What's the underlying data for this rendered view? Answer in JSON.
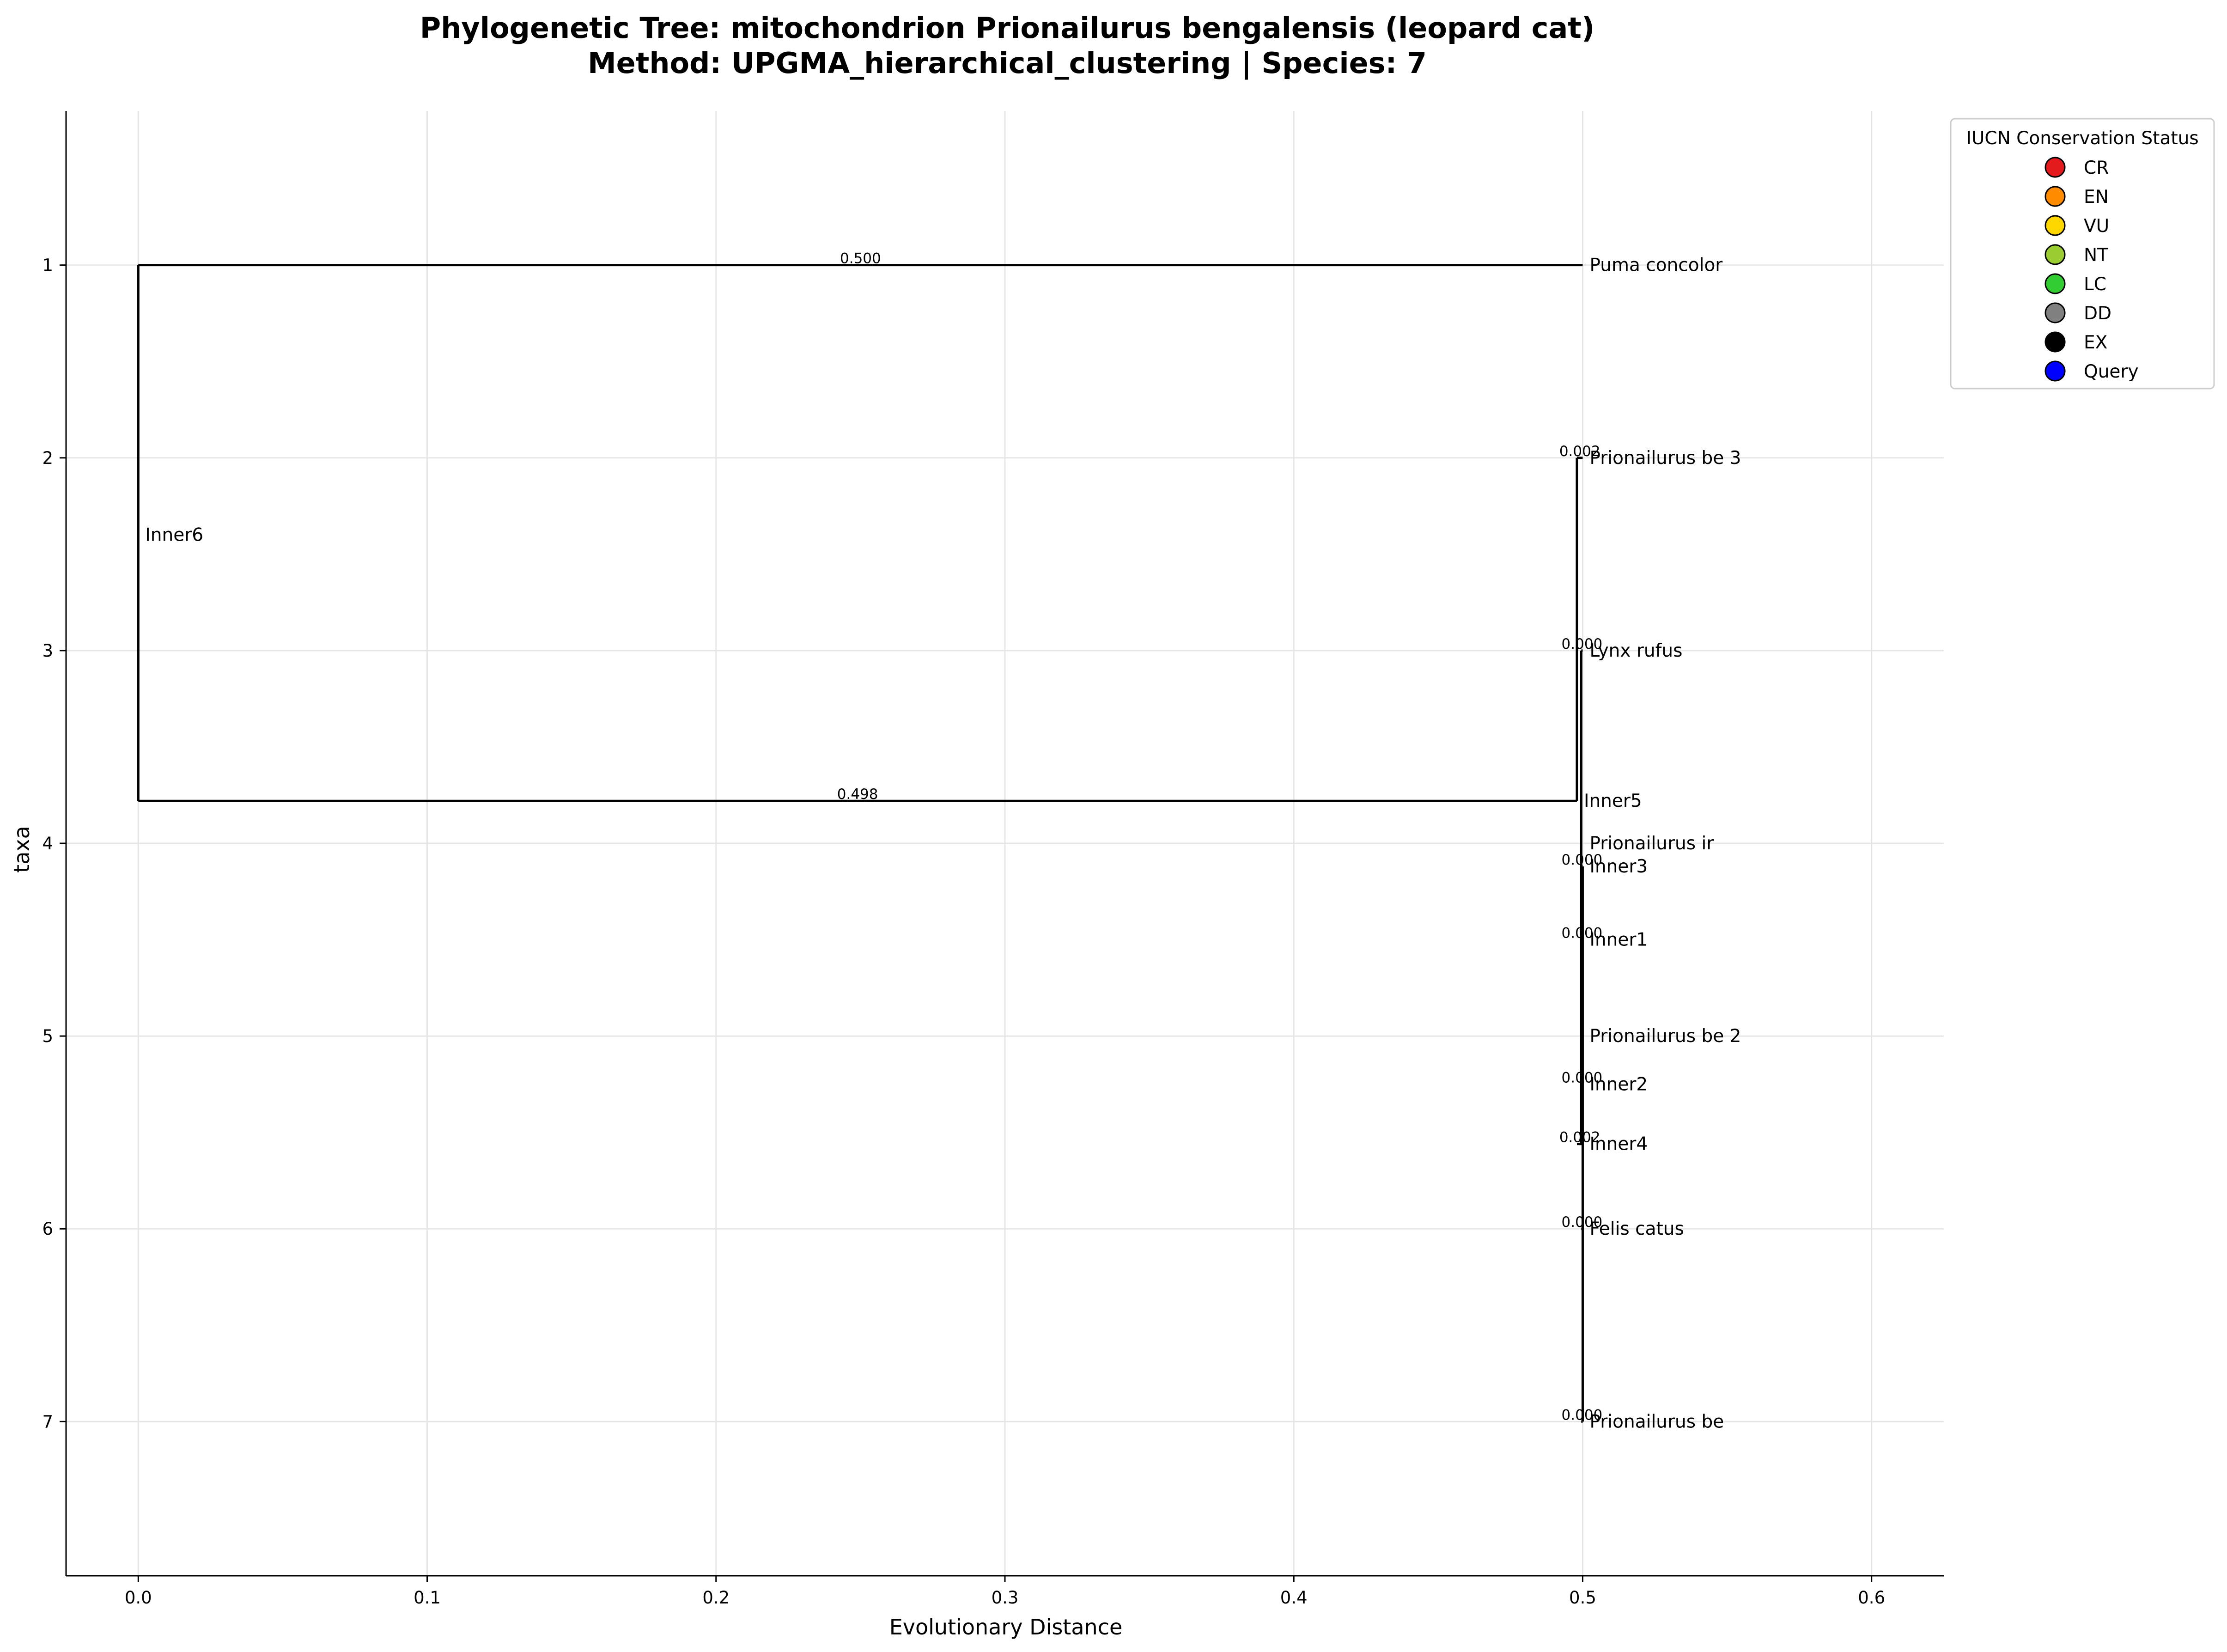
{
  "chart_data": {
    "type": "dendrogram",
    "title_line1": "Phylogenetic Tree: mitochondrion Prionailurus bengalensis (leopard cat)",
    "title_line2": "Method: UPGMA_hierarchical_clustering | Species: 7",
    "xlabel": "Evolutionary Distance",
    "ylabel": "taxa",
    "xlim": [
      -0.025,
      0.625
    ],
    "ylim": [
      7.8,
      0.2
    ],
    "x_ticks": [
      0.0,
      0.1,
      0.2,
      0.3,
      0.4,
      0.5,
      0.6
    ],
    "x_tick_labels": [
      "0.0",
      "0.1",
      "0.2",
      "0.3",
      "0.4",
      "0.5",
      "0.6"
    ],
    "y_ticks": [
      1,
      2,
      3,
      4,
      5,
      6,
      7
    ],
    "y_tick_labels": [
      "1",
      "2",
      "3",
      "4",
      "5",
      "6",
      "7"
    ],
    "grid": true,
    "branches": [
      {
        "name": "Puma concolor",
        "x0": 0.0,
        "x1": 0.5,
        "y": 1.0,
        "branch_label": "0.500"
      },
      {
        "name": "Inner5",
        "x0": 0.0,
        "x1": 0.498,
        "y": 3.78,
        "branch_label": "0.498"
      },
      {
        "name": "Prionailurus be 3",
        "x0": 0.498,
        "x1": 0.5,
        "y": 2.0,
        "branch_label": "0.002"
      },
      {
        "name": "Lynx rufus",
        "x0": 0.4995,
        "x1": 0.5,
        "y": 3.0,
        "branch_label": "0.000"
      },
      {
        "name": "Inner3",
        "x0": 0.4995,
        "x1": 0.5,
        "y": 4.12,
        "branch_label": "0.000"
      },
      {
        "name": "Inner1",
        "x0": 0.4995,
        "x1": 0.5,
        "y": 4.5,
        "branch_label": "0.000"
      },
      {
        "name": "Inner2",
        "x0": 0.4995,
        "x1": 0.5,
        "y": 5.25,
        "branch_label": "0.000"
      },
      {
        "name": "Inner4",
        "x0": 0.498,
        "x1": 0.5,
        "y": 5.56,
        "branch_label": "0.002"
      },
      {
        "name": "Felis catus",
        "x0": 0.4995,
        "x1": 0.5,
        "y": 6.0,
        "branch_label": "0.000"
      },
      {
        "name": "Prionailurus be",
        "x0": 0.4995,
        "x1": 0.5,
        "y": 7.0,
        "branch_label": "0.000"
      }
    ],
    "connectors": [
      {
        "x": 0.0,
        "y0": 1.0,
        "y1": 3.78
      },
      {
        "x": 0.498,
        "y0": 2.0,
        "y1": 3.78
      },
      {
        "x": 0.4995,
        "y0": 3.0,
        "y1": 5.56
      },
      {
        "x": 0.5,
        "y0": 4.12,
        "y1": 7.0
      }
    ],
    "node_labels": [
      {
        "text": "Puma concolor",
        "x": 0.5,
        "y": 1.0
      },
      {
        "text": "Prionailurus be 3",
        "x": 0.5,
        "y": 2.0
      },
      {
        "text": "Inner6",
        "x": 0.0,
        "y": 2.4
      },
      {
        "text": "Lynx rufus",
        "x": 0.5,
        "y": 3.0
      },
      {
        "text": "Inner5",
        "x": 0.498,
        "y": 3.78
      },
      {
        "text": "Prionailurus ir",
        "x": 0.5,
        "y": 4.0
      },
      {
        "text": "Inner3",
        "x": 0.5,
        "y": 4.12
      },
      {
        "text": "Inner1",
        "x": 0.5,
        "y": 4.5
      },
      {
        "text": "Prionailurus be 2",
        "x": 0.5,
        "y": 5.0
      },
      {
        "text": "Inner2",
        "x": 0.5,
        "y": 5.25
      },
      {
        "text": "Inner4",
        "x": 0.5,
        "y": 5.56
      },
      {
        "text": "Felis catus",
        "x": 0.5,
        "y": 6.0
      },
      {
        "text": "Prionailurus be",
        "x": 0.5,
        "y": 7.0
      }
    ],
    "legend": {
      "title": "IUCN Conservation Status",
      "position": "top-right, outside plot",
      "items": [
        {
          "label": "CR",
          "color": "#e41a1c"
        },
        {
          "label": "EN",
          "color": "#ff8c00"
        },
        {
          "label": "VU",
          "color": "#ffd700"
        },
        {
          "label": "NT",
          "color": "#9acd32"
        },
        {
          "label": "LC",
          "color": "#32cd32"
        },
        {
          "label": "DD",
          "color": "#808080"
        },
        {
          "label": "EX",
          "color": "#000000"
        },
        {
          "label": "Query",
          "color": "#0000ff"
        }
      ]
    }
  }
}
